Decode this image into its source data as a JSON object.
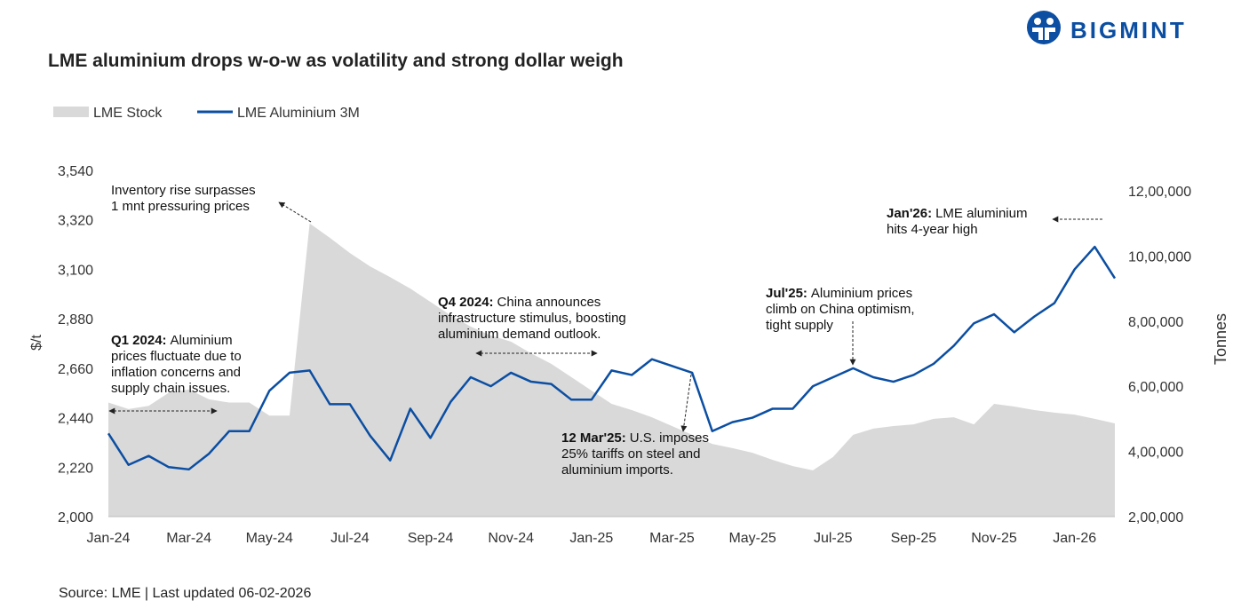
{
  "brand": "BIGMINT",
  "chart_data": {
    "type": "combo",
    "title": "LME aluminium drops w-o-w as volatility and strong dollar weigh",
    "source": "Source: LME | Last updated 06-02-2026",
    "ylabel": "$/t",
    "y2label": "Tonnes",
    "categories": [
      "Jan-24",
      null,
      null,
      null,
      "Mar-24",
      null,
      null,
      null,
      "May-24",
      null,
      null,
      null,
      "Jul-24",
      null,
      null,
      null,
      "Sep-24",
      null,
      null,
      null,
      "Nov-24",
      null,
      null,
      null,
      "Jan-25",
      null,
      null,
      null,
      "Mar-25",
      null,
      null,
      null,
      "May-25",
      null,
      null,
      null,
      "Jul-25",
      null,
      null,
      null,
      "Sep-25",
      null,
      null,
      null,
      "Nov-25",
      null,
      null,
      null,
      "Jan-26",
      null,
      null
    ],
    "series": [
      {
        "name": "LME Stock",
        "type": "area",
        "axis": "y2",
        "color": "#d9d9d9",
        "values": [
          550000,
          530000,
          540000,
          580000,
          590000,
          560000,
          550000,
          550000,
          510000,
          510000,
          1100000,
          1056000,
          1009000,
          968000,
          935000,
          900000,
          859000,
          818000,
          783000,
          756000,
          737000,
          701000,
          669000,
          628000,
          587000,
          546000,
          527000,
          505000,
          478000,
          451000,
          423000,
          410000,
          396000,
          374000,
          355000,
          342000,
          383000,
          451000,
          470000,
          478000,
          483000,
          500000,
          505000,
          483000,
          546000,
          538000,
          527000,
          519000,
          513000,
          500000,
          486000
        ]
      },
      {
        "name": "LME Aluminium 3M",
        "type": "line",
        "color": "#0b4ea2",
        "values": [
          2370,
          2230,
          2270,
          2220,
          2210,
          2280,
          2380,
          2380,
          2560,
          2640,
          2650,
          2500,
          2500,
          2360,
          2250,
          2480,
          2350,
          2510,
          2620,
          2580,
          2640,
          2600,
          2590,
          2520,
          2520,
          2650,
          2630,
          2700,
          2670,
          2640,
          2380,
          2420,
          2440,
          2480,
          2480,
          2580,
          2620,
          2660,
          2620,
          2600,
          2630,
          2680,
          2760,
          2860,
          2900,
          2820,
          2890,
          2950,
          3100,
          3200,
          3060
        ]
      }
    ],
    "ylim": [
      2000,
      3540
    ],
    "yticks": [
      {
        "value": 2000,
        "label": "2,000"
      },
      {
        "value": 2220,
        "label": "2,220"
      },
      {
        "value": 2440,
        "label": "2,440"
      },
      {
        "value": 2660,
        "label": "2,660"
      },
      {
        "value": 2880,
        "label": "2,880"
      },
      {
        "value": 3100,
        "label": "3,100"
      },
      {
        "value": 3320,
        "label": "3,320"
      },
      {
        "value": 3540,
        "label": "3,540"
      }
    ],
    "y2lim": [
      200000,
      1262700
    ],
    "y2ticks": [
      {
        "value": 200000,
        "label": "2,00,000"
      },
      {
        "value": 400000,
        "label": "4,00,000"
      },
      {
        "value": 600000,
        "label": "6,00,000"
      },
      {
        "value": 800000,
        "label": "8,00,000"
      },
      {
        "value": 1000000,
        "label": "10,00,000"
      },
      {
        "value": 1200000,
        "label": "12,00,000"
      }
    ],
    "grid": false,
    "annotations": [
      {
        "lines": [
          "Inventory rise surpasses",
          "1 mnt pressuring prices"
        ]
      },
      {
        "lead": "Q1 2024:",
        "lines": [
          "Aluminium",
          "prices fluctuate due to",
          "inflation concerns and",
          "supply chain issues."
        ]
      },
      {
        "lead": "Q4 2024:",
        "lines": [
          "China announces",
          "infrastructure stimulus, boosting",
          "aluminium demand outlook."
        ]
      },
      {
        "lead": "12 Mar'25:",
        "lines": [
          "U.S. imposes",
          "25% tariffs on steel and",
          "aluminium imports."
        ]
      },
      {
        "lead": "Jul'25:",
        "lines": [
          "Aluminium prices",
          "climb on China optimism,",
          "tight supply"
        ]
      },
      {
        "lead": "Jan'26:",
        "lines": [
          "LME aluminium",
          "hits 4-year high"
        ]
      }
    ]
  }
}
